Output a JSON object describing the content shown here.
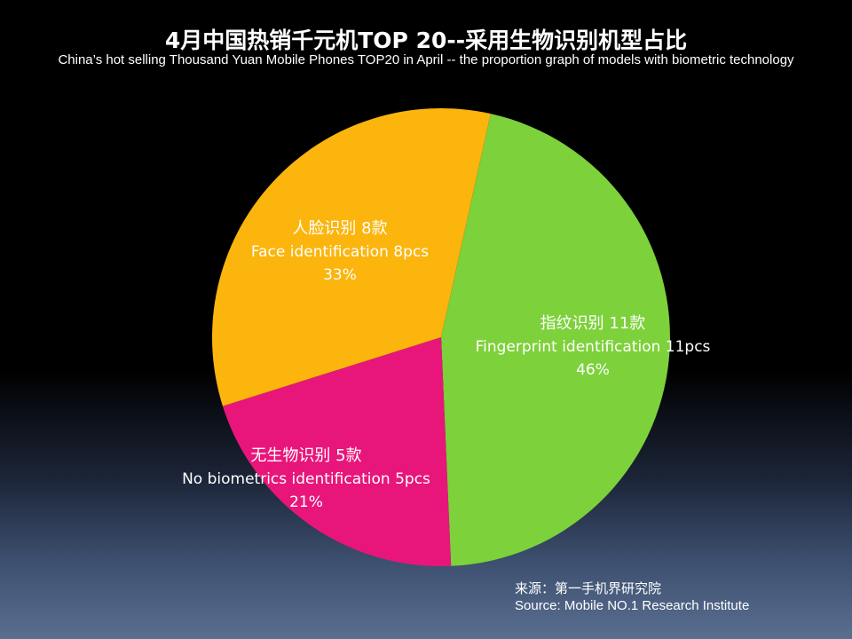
{
  "chart_data": {
    "type": "pie",
    "title": "4月中国热销千元机TOP 20--采用生物识别机型占比",
    "subtitle": "China’s hot selling Thousand Yuan Mobile Phones TOP20 in April -- the proportion graph of models with biometric technology",
    "slices": [
      {
        "value": 11,
        "percent": 46,
        "color": "#7dd13a",
        "label_cn": "指纹识别  11款",
        "label_en": "Fingerprint identification 11pcs",
        "label_pct": "46%"
      },
      {
        "value": 5,
        "percent": 21,
        "color": "#e8167a",
        "label_cn": "无生物识别  5款",
        "label_en": "No biometrics identification 5pcs",
        "label_pct": "21%"
      },
      {
        "value": 8,
        "percent": 33,
        "color": "#fbb50d",
        "label_cn": "人脸识别 8款",
        "label_en": "Face identification 8pcs",
        "label_pct": "33%"
      }
    ]
  },
  "source": {
    "cn": "来源：第一手机界研究院",
    "en": "Source: Mobile NO.1 Research Institute"
  }
}
